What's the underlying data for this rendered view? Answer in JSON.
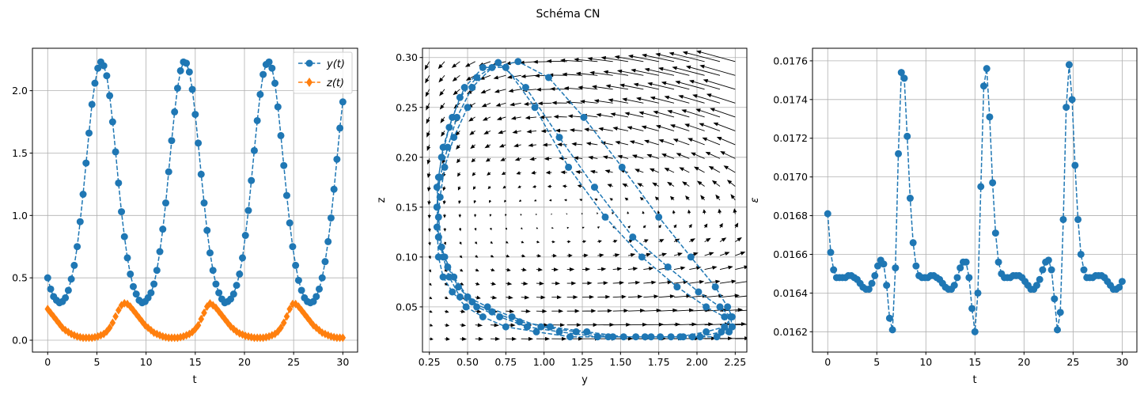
{
  "figure": {
    "title": "Schéma CN"
  },
  "colors": {
    "blue": "#1f77b4",
    "orange": "#ff7f0e",
    "grid": "#b0b0b0",
    "arrow": "#000000"
  },
  "chart_data": [
    {
      "type": "line",
      "name": "time-series",
      "t_range": [
        0,
        30
      ],
      "xlabel": "t",
      "ylabel": "",
      "xlim": [
        -1.55,
        31.5
      ],
      "ylim": [
        -0.095,
        2.34
      ],
      "xticks": [
        0,
        5,
        10,
        15,
        20,
        25,
        30
      ],
      "xtick_labels": [
        "0",
        "5",
        "10",
        "15",
        "20",
        "25",
        "30"
      ],
      "yticks": [
        0,
        0.5,
        1.0,
        1.5,
        2.0
      ],
      "ytick_labels": [
        "0.0",
        "0.5",
        "1.0",
        "1.5",
        "2.0"
      ],
      "grid": true,
      "legend": {
        "placement": "top-right",
        "entries": [
          "y(t)",
          "z(t)"
        ]
      },
      "series": [
        {
          "name": "y(t)",
          "marker": "circle",
          "linestyle": "dashed",
          "color": "#1f77b4",
          "values": [
            0.5,
            0.41,
            0.35,
            0.32,
            0.3,
            0.31,
            0.34,
            0.4,
            0.49,
            0.6,
            0.75,
            0.95,
            1.17,
            1.42,
            1.66,
            1.89,
            2.06,
            2.18,
            2.23,
            2.2,
            2.12,
            1.96,
            1.75,
            1.51,
            1.26,
            1.03,
            0.83,
            0.66,
            0.53,
            0.43,
            0.37,
            0.32,
            0.3,
            0.31,
            0.34,
            0.38,
            0.45,
            0.56,
            0.71,
            0.89,
            1.1,
            1.35,
            1.6,
            1.83,
            2.02,
            2.16,
            2.23,
            2.22,
            2.15,
            2.01,
            1.81,
            1.58,
            1.33,
            1.1,
            0.88,
            0.7,
            0.56,
            0.45,
            0.38,
            0.33,
            0.3,
            0.31,
            0.33,
            0.37,
            0.44,
            0.53,
            0.66,
            0.84,
            1.04,
            1.28,
            1.52,
            1.76,
            1.97,
            2.13,
            2.21,
            2.23,
            2.18,
            2.06,
            1.87,
            1.64,
            1.4,
            1.16,
            0.94,
            0.75,
            0.6,
            0.48,
            0.4,
            0.34,
            0.31,
            0.3,
            0.31,
            0.35,
            0.41,
            0.5,
            0.63,
            0.79,
            0.98,
            1.21,
            1.45,
            1.7,
            1.91
          ]
        },
        {
          "name": "z(t)",
          "marker": "diamond",
          "linestyle": "dashed",
          "color": "#ff7f0e",
          "values": [
            0.25,
            0.22,
            0.19,
            0.16,
            0.13,
            0.1,
            0.08,
            0.065,
            0.05,
            0.04,
            0.03,
            0.025,
            0.02,
            0.02,
            0.02,
            0.02,
            0.025,
            0.03,
            0.04,
            0.05,
            0.07,
            0.1,
            0.14,
            0.19,
            0.24,
            0.28,
            0.296,
            0.29,
            0.27,
            0.24,
            0.21,
            0.18,
            0.15,
            0.12,
            0.1,
            0.08,
            0.06,
            0.05,
            0.04,
            0.03,
            0.025,
            0.02,
            0.02,
            0.02,
            0.02,
            0.025,
            0.03,
            0.04,
            0.05,
            0.065,
            0.09,
            0.12,
            0.17,
            0.22,
            0.27,
            0.295,
            0.28,
            0.26,
            0.23,
            0.2,
            0.17,
            0.14,
            0.11,
            0.09,
            0.07,
            0.055,
            0.045,
            0.035,
            0.03,
            0.025,
            0.02,
            0.02,
            0.02,
            0.02,
            0.025,
            0.03,
            0.04,
            0.05,
            0.07,
            0.1,
            0.14,
            0.19,
            0.25,
            0.29,
            0.29,
            0.27,
            0.24,
            0.21,
            0.18,
            0.15,
            0.12,
            0.1,
            0.08,
            0.06,
            0.05,
            0.04,
            0.03,
            0.025,
            0.02,
            0.02,
            0.02
          ]
        }
      ]
    },
    {
      "type": "scatter",
      "name": "phase-portrait",
      "xlabel": "y",
      "ylabel": "z",
      "xlim": [
        0.205,
        2.326
      ],
      "ylim": [
        0.0047,
        0.3093
      ],
      "xticks": [
        0.25,
        0.5,
        0.75,
        1.0,
        1.25,
        1.5,
        1.75,
        2.0,
        2.25
      ],
      "xtick_labels": [
        "0.25",
        "0.50",
        "0.75",
        "1.00",
        "1.25",
        "1.50",
        "1.75",
        "2.00",
        "2.25"
      ],
      "yticks": [
        0.05,
        0.1,
        0.15,
        0.2,
        0.25,
        0.3
      ],
      "ytick_labels": [
        "0.05",
        "0.10",
        "0.15",
        "0.20",
        "0.25",
        "0.30"
      ],
      "grid": true,
      "trajectory": "y(t) vs z(t) from time-series",
      "quiver": {
        "y_range": [
          0.25,
          2.25
        ],
        "z_range": [
          0.018,
          0.296
        ],
        "n": 21,
        "model": {
          "a": 1.0,
          "z_eq": 0.14,
          "y_eq": 1.1,
          "m": 2.0
        }
      }
    },
    {
      "type": "line",
      "name": "error",
      "t_range": [
        0,
        30
      ],
      "xlabel": "t",
      "ylabel": "ε",
      "xlim": [
        -1.55,
        31.5
      ],
      "ylim": [
        0.016095,
        0.017665
      ],
      "xticks": [
        0,
        5,
        10,
        15,
        20,
        25,
        30
      ],
      "xtick_labels": [
        "0",
        "5",
        "10",
        "15",
        "20",
        "25",
        "30"
      ],
      "yticks": [
        0.0162,
        0.0164,
        0.0166,
        0.0168,
        0.017,
        0.0172,
        0.0174,
        0.0176
      ],
      "ytick_labels": [
        "0.0162",
        "0.0164",
        "0.0166",
        "0.0168",
        "0.0170",
        "0.0172",
        "0.0174",
        "0.0176"
      ],
      "grid": true,
      "series": [
        {
          "name": "ε",
          "marker": "circle",
          "linestyle": "dashed",
          "color": "#1f77b4",
          "values": [
            0.01681,
            0.01661,
            0.01652,
            0.01648,
            0.01648,
            0.01648,
            0.01648,
            0.01649,
            0.01649,
            0.01648,
            0.01647,
            0.01645,
            0.01643,
            0.01642,
            0.01642,
            0.01645,
            0.01649,
            0.01654,
            0.01657,
            0.01655,
            0.01644,
            0.01627,
            0.01621,
            0.01653,
            0.01712,
            0.01754,
            0.01751,
            0.01721,
            0.01689,
            0.01666,
            0.01654,
            0.01649,
            0.01648,
            0.01648,
            0.01648,
            0.01649,
            0.01649,
            0.01648,
            0.01647,
            0.01645,
            0.01643,
            0.01642,
            0.01642,
            0.01644,
            0.01648,
            0.01653,
            0.01656,
            0.01656,
            0.01648,
            0.01632,
            0.0162,
            0.0164,
            0.01695,
            0.01747,
            0.01756,
            0.01731,
            0.01697,
            0.01671,
            0.01656,
            0.0165,
            0.01648,
            0.01648,
            0.01648,
            0.01649,
            0.01649,
            0.01649,
            0.01648,
            0.01646,
            0.01644,
            0.01642,
            0.01642,
            0.01644,
            0.01647,
            0.01652,
            0.01656,
            0.01657,
            0.01652,
            0.01637,
            0.01621,
            0.0163,
            0.01678,
            0.01736,
            0.01758,
            0.0174,
            0.01706,
            0.01678,
            0.0166,
            0.01652,
            0.01648,
            0.01648,
            0.01648,
            0.01649,
            0.01649,
            0.01649,
            0.01648,
            0.01646,
            0.01644,
            0.01642,
            0.01642,
            0.01643,
            0.01646
          ]
        }
      ]
    }
  ]
}
